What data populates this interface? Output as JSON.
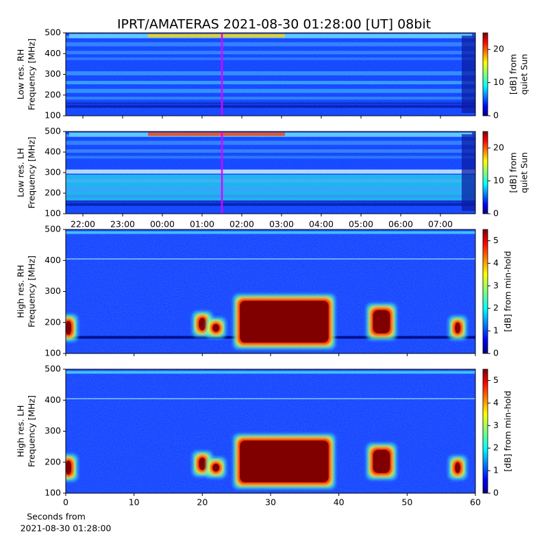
{
  "title": "IPRT/AMATERAS 2021-08-30 01:28:00 [UT]   08bit",
  "chart_data": [
    {
      "type": "heatmap",
      "ylabel": [
        "Low res. RH",
        "Frequency [MHz]"
      ],
      "ylim": [
        100,
        500
      ],
      "yticks": [
        100,
        200,
        300,
        400,
        500
      ],
      "colorbar_label": [
        "[dB] from",
        "quiet Sun"
      ],
      "clim": [
        0,
        25
      ],
      "cticks": [
        0,
        10,
        20
      ]
    },
    {
      "type": "heatmap",
      "ylabel": [
        "Low res. LH",
        "Frequency [MHz]"
      ],
      "ylim": [
        100,
        500
      ],
      "yticks": [
        100,
        200,
        300,
        400,
        500
      ],
      "categories": [
        "22:00",
        "23:00",
        "00:00",
        "01:00",
        "02:00",
        "03:00",
        "04:00",
        "05:00",
        "06:00",
        "07:00"
      ],
      "colorbar_label": [
        "[dB] from",
        "quiet Sun"
      ],
      "clim": [
        0,
        25
      ],
      "cticks": [
        0,
        10,
        20
      ]
    },
    {
      "type": "heatmap",
      "ylabel": [
        "High res. RH",
        "Frequency [MHz]"
      ],
      "ylim": [
        100,
        500
      ],
      "yticks": [
        100,
        200,
        300,
        400,
        500
      ],
      "xlim": [
        0,
        60
      ],
      "xticks": [
        0,
        10,
        20,
        30,
        40,
        50,
        60
      ],
      "colorbar_label": [
        "[dB] from min-hold"
      ],
      "clim": [
        0,
        5.5
      ],
      "cticks": [
        0,
        1,
        2,
        3,
        4,
        5
      ]
    },
    {
      "type": "heatmap",
      "ylabel": [
        "High res. LH",
        "Frequency [MHz]"
      ],
      "ylim": [
        100,
        500
      ],
      "yticks": [
        100,
        200,
        300,
        400,
        500
      ],
      "xlim": [
        0,
        60
      ],
      "xticks": [
        0,
        10,
        20,
        30,
        40,
        50,
        60
      ],
      "xlabel": [
        "Seconds from",
        "2021-08-30 01:28:00"
      ],
      "colorbar_label": [
        "[dB] from min-hold"
      ],
      "clim": [
        0,
        5.5
      ],
      "cticks": [
        0,
        1,
        2,
        3,
        4,
        5
      ]
    }
  ]
}
